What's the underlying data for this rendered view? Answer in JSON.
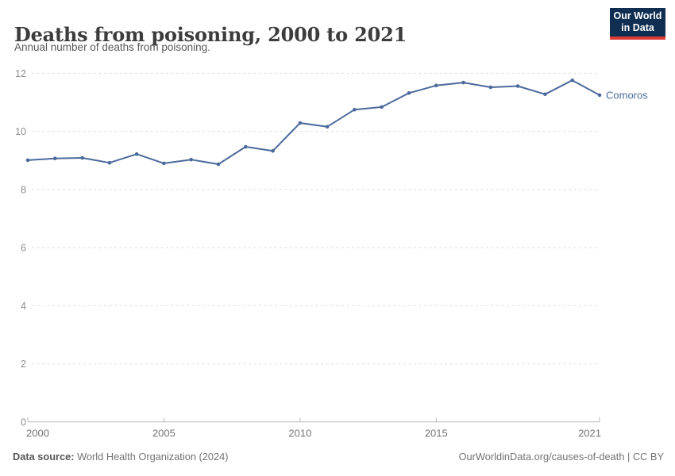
{
  "header": {
    "title": "Deaths from poisoning, 2000 to 2021",
    "subtitle": "Annual number of deaths from poisoning.",
    "logo_line1": "Our World",
    "logo_line2": "in Data"
  },
  "footer": {
    "source_label": "Data source:",
    "source_text": " World Health Organization (2024)",
    "link_text": "OurWorldinData.org/causes-of-death | CC BY"
  },
  "colors": {
    "series": "#4c6a9c",
    "grid": "#dcdcdc",
    "axis": "#bbbbbb",
    "y_tick_label": "#8e8e8e",
    "x_tick_label": "#767676",
    "logo_bg": "#0f2e52",
    "logo_accent": "#dc3b33"
  },
  "chart_data": {
    "type": "line",
    "title": "Deaths from poisoning, 2000 to 2021",
    "subtitle": "Annual number of deaths from poisoning.",
    "xlabel": "",
    "ylabel": "",
    "xlim": [
      2000,
      2021
    ],
    "ylim": [
      0,
      12
    ],
    "yticks": [
      0,
      2,
      4,
      6,
      8,
      10,
      12
    ],
    "xticks": [
      2000,
      2005,
      2010,
      2015,
      2021
    ],
    "grid": "horizontal-dashed",
    "legend_position": "end-of-line-label",
    "series": [
      {
        "name": "Comoros",
        "x": [
          2000,
          2001,
          2002,
          2003,
          2004,
          2005,
          2006,
          2007,
          2008,
          2009,
          2010,
          2011,
          2012,
          2013,
          2014,
          2015,
          2016,
          2017,
          2018,
          2019,
          2020,
          2021
        ],
        "values": [
          9.01,
          9.07,
          9.09,
          8.92,
          9.22,
          8.9,
          9.03,
          8.87,
          9.47,
          9.33,
          10.29,
          10.16,
          10.75,
          10.84,
          11.32,
          11.58,
          11.68,
          11.52,
          11.56,
          11.28,
          11.76,
          11.25
        ]
      }
    ]
  }
}
